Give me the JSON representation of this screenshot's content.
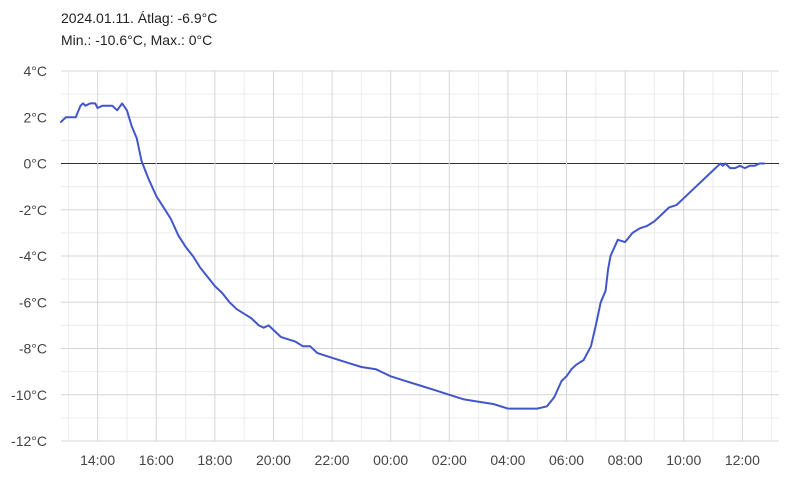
{
  "header": {
    "line1": "2024.01.11. Átlag: -6.9°C",
    "line2": "Min.: -10.6°C, Max.: 0°C"
  },
  "colors": {
    "series": "#4256c9",
    "grid": "#d6d6d6",
    "zero_line": "#333333",
    "text": "#444444"
  },
  "chart_data": {
    "type": "line",
    "title": "",
    "xlabel": "",
    "ylabel": "",
    "unit": "°C",
    "ylim": [
      -12,
      4
    ],
    "yticks": [
      {
        "value": 4,
        "label": "4°C"
      },
      {
        "value": 2,
        "label": "2°C"
      },
      {
        "value": 0,
        "label": "0°C"
      },
      {
        "value": -2,
        "label": "-2°C"
      },
      {
        "value": -4,
        "label": "-4°C"
      },
      {
        "value": -6,
        "label": "-6°C"
      },
      {
        "value": -8,
        "label": "-8°C"
      },
      {
        "value": -10,
        "label": "-10°C"
      },
      {
        "value": -12,
        "label": "-12°C"
      }
    ],
    "xlim": [
      "2024-01-11 12:45",
      "2024-01-12 13:15"
    ],
    "xticks": [
      {
        "value": "2024-01-11 14:00",
        "label": "14:00"
      },
      {
        "value": "2024-01-11 16:00",
        "label": "16:00"
      },
      {
        "value": "2024-01-11 18:00",
        "label": "18:00"
      },
      {
        "value": "2024-01-11 20:00",
        "label": "20:00"
      },
      {
        "value": "2024-01-11 22:00",
        "label": "22:00"
      },
      {
        "value": "2024-01-12 00:00",
        "label": "00:00"
      },
      {
        "value": "2024-01-12 02:00",
        "label": "02:00"
      },
      {
        "value": "2024-01-12 04:00",
        "label": "04:00"
      },
      {
        "value": "2024-01-12 06:00",
        "label": "06:00"
      },
      {
        "value": "2024-01-12 08:00",
        "label": "08:00"
      },
      {
        "value": "2024-01-12 10:00",
        "label": "10:00"
      },
      {
        "value": "2024-01-12 12:00",
        "label": "12:00"
      }
    ],
    "grid": true,
    "series": [
      {
        "name": "",
        "points": [
          [
            "2024-01-11 12:45",
            1.8
          ],
          [
            "2024-01-11 12:55",
            2.0
          ],
          [
            "2024-01-11 13:05",
            2.0
          ],
          [
            "2024-01-11 13:15",
            2.0
          ],
          [
            "2024-01-11 13:25",
            2.5
          ],
          [
            "2024-01-11 13:30",
            2.6
          ],
          [
            "2024-01-11 13:35",
            2.5
          ],
          [
            "2024-01-11 13:45",
            2.6
          ],
          [
            "2024-01-11 13:55",
            2.6
          ],
          [
            "2024-01-11 14:00",
            2.4
          ],
          [
            "2024-01-11 14:10",
            2.5
          ],
          [
            "2024-01-11 14:30",
            2.5
          ],
          [
            "2024-01-11 14:40",
            2.3
          ],
          [
            "2024-01-11 14:50",
            2.6
          ],
          [
            "2024-01-11 15:00",
            2.3
          ],
          [
            "2024-01-11 15:10",
            1.6
          ],
          [
            "2024-01-11 15:20",
            1.1
          ],
          [
            "2024-01-11 15:30",
            0.1
          ],
          [
            "2024-01-11 15:45",
            -0.7
          ],
          [
            "2024-01-11 16:00",
            -1.4
          ],
          [
            "2024-01-11 16:15",
            -1.9
          ],
          [
            "2024-01-11 16:30",
            -2.4
          ],
          [
            "2024-01-11 16:45",
            -3.1
          ],
          [
            "2024-01-11 17:00",
            -3.6
          ],
          [
            "2024-01-11 17:15",
            -4.0
          ],
          [
            "2024-01-11 17:30",
            -4.5
          ],
          [
            "2024-01-11 17:45",
            -4.9
          ],
          [
            "2024-01-11 18:00",
            -5.3
          ],
          [
            "2024-01-11 18:15",
            -5.6
          ],
          [
            "2024-01-11 18:30",
            -6.0
          ],
          [
            "2024-01-11 18:45",
            -6.3
          ],
          [
            "2024-01-11 19:00",
            -6.5
          ],
          [
            "2024-01-11 19:15",
            -6.7
          ],
          [
            "2024-01-11 19:30",
            -7.0
          ],
          [
            "2024-01-11 19:40",
            -7.1
          ],
          [
            "2024-01-11 19:50",
            -7.0
          ],
          [
            "2024-01-11 20:00",
            -7.2
          ],
          [
            "2024-01-11 20:15",
            -7.5
          ],
          [
            "2024-01-11 20:30",
            -7.6
          ],
          [
            "2024-01-11 20:45",
            -7.7
          ],
          [
            "2024-01-11 21:00",
            -7.9
          ],
          [
            "2024-01-11 21:15",
            -7.9
          ],
          [
            "2024-01-11 21:30",
            -8.2
          ],
          [
            "2024-01-11 22:00",
            -8.4
          ],
          [
            "2024-01-11 22:30",
            -8.6
          ],
          [
            "2024-01-11 23:00",
            -8.8
          ],
          [
            "2024-01-11 23:30",
            -8.9
          ],
          [
            "2024-01-12 00:00",
            -9.2
          ],
          [
            "2024-01-12 00:30",
            -9.4
          ],
          [
            "2024-01-12 01:00",
            -9.6
          ],
          [
            "2024-01-12 01:30",
            -9.8
          ],
          [
            "2024-01-12 02:00",
            -10.0
          ],
          [
            "2024-01-12 02:30",
            -10.2
          ],
          [
            "2024-01-12 03:00",
            -10.3
          ],
          [
            "2024-01-12 03:30",
            -10.4
          ],
          [
            "2024-01-12 04:00",
            -10.6
          ],
          [
            "2024-01-12 04:30",
            -10.6
          ],
          [
            "2024-01-12 05:00",
            -10.6
          ],
          [
            "2024-01-12 05:20",
            -10.5
          ],
          [
            "2024-01-12 05:35",
            -10.1
          ],
          [
            "2024-01-12 05:50",
            -9.4
          ],
          [
            "2024-01-12 06:00",
            -9.2
          ],
          [
            "2024-01-12 06:10",
            -8.9
          ],
          [
            "2024-01-12 06:20",
            -8.7
          ],
          [
            "2024-01-12 06:35",
            -8.5
          ],
          [
            "2024-01-12 06:50",
            -7.9
          ],
          [
            "2024-01-12 07:00",
            -7.0
          ],
          [
            "2024-01-12 07:10",
            -6.0
          ],
          [
            "2024-01-12 07:20",
            -5.5
          ],
          [
            "2024-01-12 07:25",
            -4.6
          ],
          [
            "2024-01-12 07:30",
            -4.0
          ],
          [
            "2024-01-12 07:45",
            -3.3
          ],
          [
            "2024-01-12 08:00",
            -3.4
          ],
          [
            "2024-01-12 08:15",
            -3.0
          ],
          [
            "2024-01-12 08:30",
            -2.8
          ],
          [
            "2024-01-12 08:45",
            -2.7
          ],
          [
            "2024-01-12 09:00",
            -2.5
          ],
          [
            "2024-01-12 09:15",
            -2.2
          ],
          [
            "2024-01-12 09:30",
            -1.9
          ],
          [
            "2024-01-12 09:45",
            -1.8
          ],
          [
            "2024-01-12 10:00",
            -1.5
          ],
          [
            "2024-01-12 10:15",
            -1.2
          ],
          [
            "2024-01-12 10:30",
            -0.9
          ],
          [
            "2024-01-12 10:45",
            -0.6
          ],
          [
            "2024-01-12 11:00",
            -0.3
          ],
          [
            "2024-01-12 11:10",
            -0.1
          ],
          [
            "2024-01-12 11:15",
            0.0
          ],
          [
            "2024-01-12 11:20",
            -0.1
          ],
          [
            "2024-01-12 11:25",
            0.0
          ],
          [
            "2024-01-12 11:35",
            -0.2
          ],
          [
            "2024-01-12 11:45",
            -0.2
          ],
          [
            "2024-01-12 11:55",
            -0.1
          ],
          [
            "2024-01-12 12:05",
            -0.2
          ],
          [
            "2024-01-12 12:15",
            -0.1
          ],
          [
            "2024-01-12 12:25",
            -0.1
          ],
          [
            "2024-01-12 12:35",
            0.0
          ],
          [
            "2024-01-12 12:45",
            0.0
          ]
        ]
      }
    ]
  }
}
